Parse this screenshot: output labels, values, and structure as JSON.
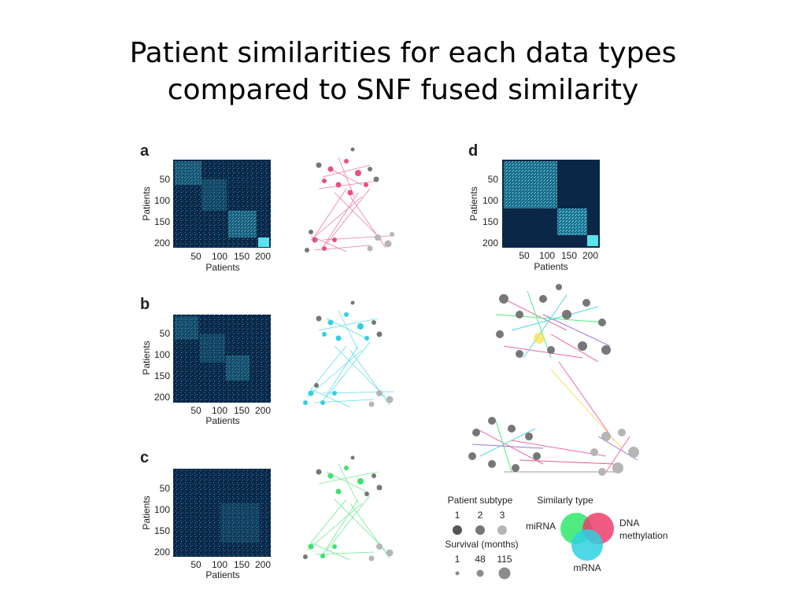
{
  "slide": {
    "title_line1": "Patient similarities for each data types",
    "title_line2": "compared to SNF fused similarity"
  },
  "panels": [
    {
      "letter": "a",
      "network_color": "#e8507e",
      "yticks": [
        "50",
        "100",
        "150",
        "200"
      ],
      "xticks": [
        "50",
        "100",
        "150",
        "200"
      ],
      "xlabel": "Patients",
      "ylabel": "Patients"
    },
    {
      "letter": "b",
      "network_color": "#2fd1e2",
      "yticks": [
        "50",
        "100",
        "150",
        "200"
      ],
      "xticks": [
        "50",
        "100",
        "150",
        "200"
      ],
      "xlabel": "Patients",
      "ylabel": "Patients"
    },
    {
      "letter": "c",
      "network_color": "#3be36a",
      "yticks": [
        "50",
        "100",
        "150",
        "200"
      ],
      "xticks": [
        "50",
        "100",
        "150",
        "200"
      ],
      "xlabel": "Patients",
      "ylabel": "Patients"
    },
    {
      "letter": "d",
      "network_color": "multi",
      "yticks": [
        "50",
        "100",
        "150",
        "200"
      ],
      "xticks": [
        "50",
        "100",
        "150",
        "200"
      ],
      "xlabel": "Patients",
      "ylabel": "Patients"
    }
  ],
  "legend": {
    "subtype_title": "Patient subtype",
    "subtypes": [
      "1",
      "2",
      "3"
    ],
    "subtype_colors": [
      "#555555",
      "#777777",
      "#b5b5b5"
    ],
    "survival_title": "Survival (months)",
    "survival": [
      "1",
      "48",
      "115"
    ],
    "similarity_title": "Similarly type",
    "similarity_types": [
      {
        "label": "miRNA",
        "color": "#2ee96b"
      },
      {
        "label": "DNA methylation",
        "label_line1": "DNA",
        "label_line2": "methylation",
        "color": "#ef3d6b"
      },
      {
        "label": "mRNA",
        "color": "#2fd1e2"
      }
    ]
  }
}
